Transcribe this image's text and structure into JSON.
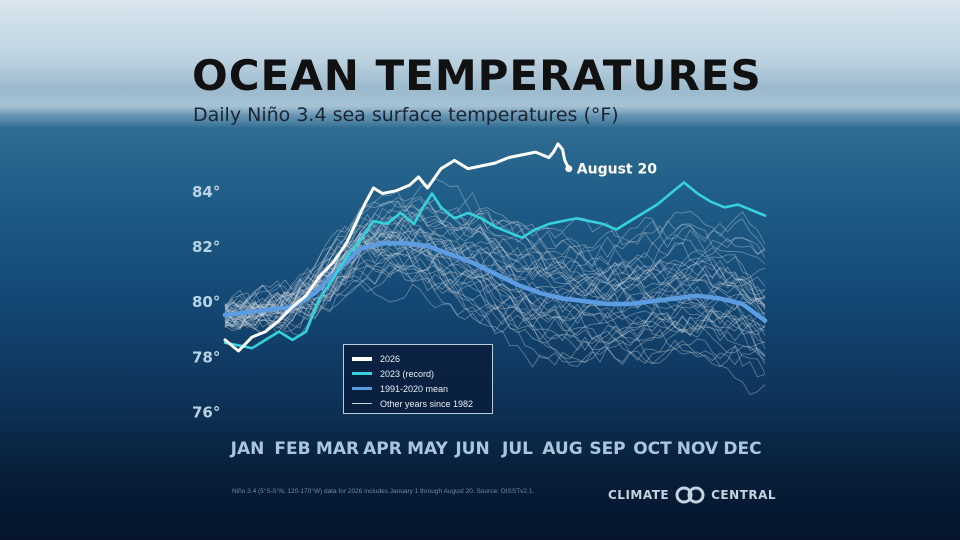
{
  "header": {
    "title": "OCEAN TEMPERATURES",
    "subtitle": "Daily Niño 3.4 sea surface temperatures  (°F)"
  },
  "chart_data": {
    "type": "line",
    "title": "OCEAN TEMPERATURES",
    "subtitle": "Daily Niño 3.4 sea surface temperatures  (°F)",
    "xlabel": "",
    "ylabel": "",
    "ylim": [
      75.5,
      85.5
    ],
    "y_ticks": [
      76,
      78,
      80,
      82,
      84
    ],
    "y_tick_labels": [
      "76°",
      "78°",
      "80°",
      "82°",
      "84°"
    ],
    "months": [
      "JAN",
      "FEB",
      "MAR",
      "APR",
      "MAY",
      "JUN",
      "JUL",
      "AUG",
      "SEP",
      "OCT",
      "NOV",
      "DEC"
    ],
    "x_unit": "month (fractional, 0 = Jan 1)",
    "grid": false,
    "legend_position": "bottom-center",
    "annotation": "August 20",
    "series": [
      {
        "name": "2026",
        "color": "#ffffff",
        "x": [
          0.0,
          0.3,
          0.6,
          0.9,
          1.2,
          1.5,
          1.8,
          2.1,
          2.4,
          2.7,
          2.9,
          3.1,
          3.3,
          3.5,
          3.8,
          4.1,
          4.3,
          4.5,
          4.8,
          5.1,
          5.4,
          5.7,
          6.0,
          6.3,
          6.6,
          6.9,
          7.2,
          7.3,
          7.4,
          7.5,
          7.55,
          7.64
        ],
        "values": [
          78.6,
          78.2,
          78.7,
          78.9,
          79.3,
          79.8,
          80.2,
          80.9,
          81.4,
          82.1,
          82.8,
          83.5,
          84.1,
          83.9,
          84.0,
          84.2,
          84.5,
          84.1,
          84.8,
          85.1,
          84.8,
          84.9,
          85.0,
          85.2,
          85.3,
          85.4,
          85.2,
          85.4,
          85.7,
          85.5,
          85.1,
          84.8
        ]
      },
      {
        "name": "2023 (record)",
        "color": "#35d2db",
        "x": [
          0.0,
          0.3,
          0.6,
          0.9,
          1.2,
          1.5,
          1.8,
          2.1,
          2.4,
          2.7,
          3.0,
          3.3,
          3.6,
          3.9,
          4.2,
          4.4,
          4.6,
          4.8,
          5.1,
          5.4,
          5.7,
          6.0,
          6.3,
          6.6,
          6.9,
          7.2,
          7.5,
          7.8,
          8.1,
          8.4,
          8.7,
          9.0,
          9.3,
          9.6,
          9.9,
          10.2,
          10.5,
          10.8,
          11.1,
          11.4,
          11.7,
          12.0
        ],
        "values": [
          78.5,
          78.4,
          78.3,
          78.6,
          78.9,
          78.6,
          78.9,
          80.1,
          80.8,
          81.6,
          82.2,
          82.9,
          82.8,
          83.2,
          82.8,
          83.4,
          83.9,
          83.4,
          83.0,
          83.2,
          83.0,
          82.7,
          82.5,
          82.3,
          82.6,
          82.8,
          82.9,
          83.0,
          82.9,
          82.8,
          82.6,
          82.9,
          83.2,
          83.5,
          83.9,
          84.3,
          83.9,
          83.6,
          83.4,
          83.5,
          83.3,
          83.1
        ]
      },
      {
        "name": "1991-2020 mean",
        "color": "#5b9de0",
        "x": [
          0,
          0.5,
          1,
          1.5,
          2,
          2.5,
          3,
          3.5,
          4,
          4.5,
          5,
          5.5,
          6,
          6.5,
          7,
          7.5,
          8,
          8.5,
          9,
          9.5,
          10,
          10.5,
          11,
          11.5,
          12
        ],
        "values": [
          79.5,
          79.6,
          79.7,
          79.8,
          80.3,
          81.1,
          81.9,
          82.1,
          82.1,
          82.0,
          81.7,
          81.4,
          81.0,
          80.6,
          80.3,
          80.1,
          80.0,
          79.9,
          79.9,
          80.0,
          80.1,
          80.2,
          80.1,
          79.9,
          79.3
        ]
      }
    ],
    "other_years": {
      "name": "Other years since 1982",
      "color": "#c8d2dc"
    }
  },
  "legend": [
    {
      "label": "2026",
      "color": "#ffffff",
      "weight": 4
    },
    {
      "label": "2023 (record)",
      "color": "#35d2db",
      "weight": 3
    },
    {
      "label": "1991-2020 mean",
      "color": "#5b9de0",
      "weight": 3
    },
    {
      "label": "Other years since 1982",
      "color": "#c8d2dc",
      "weight": 1
    }
  ],
  "footer": {
    "footnote": "Niño 3.4 (5°S-5°N, 120-170°W) data for 2026 includes January 1 through August 20. Source: OISSTv2.1.",
    "brand_left": "CLIMATE",
    "brand_right": "CENTRAL",
    "logo_icon": "climate-central-logo-icon"
  }
}
